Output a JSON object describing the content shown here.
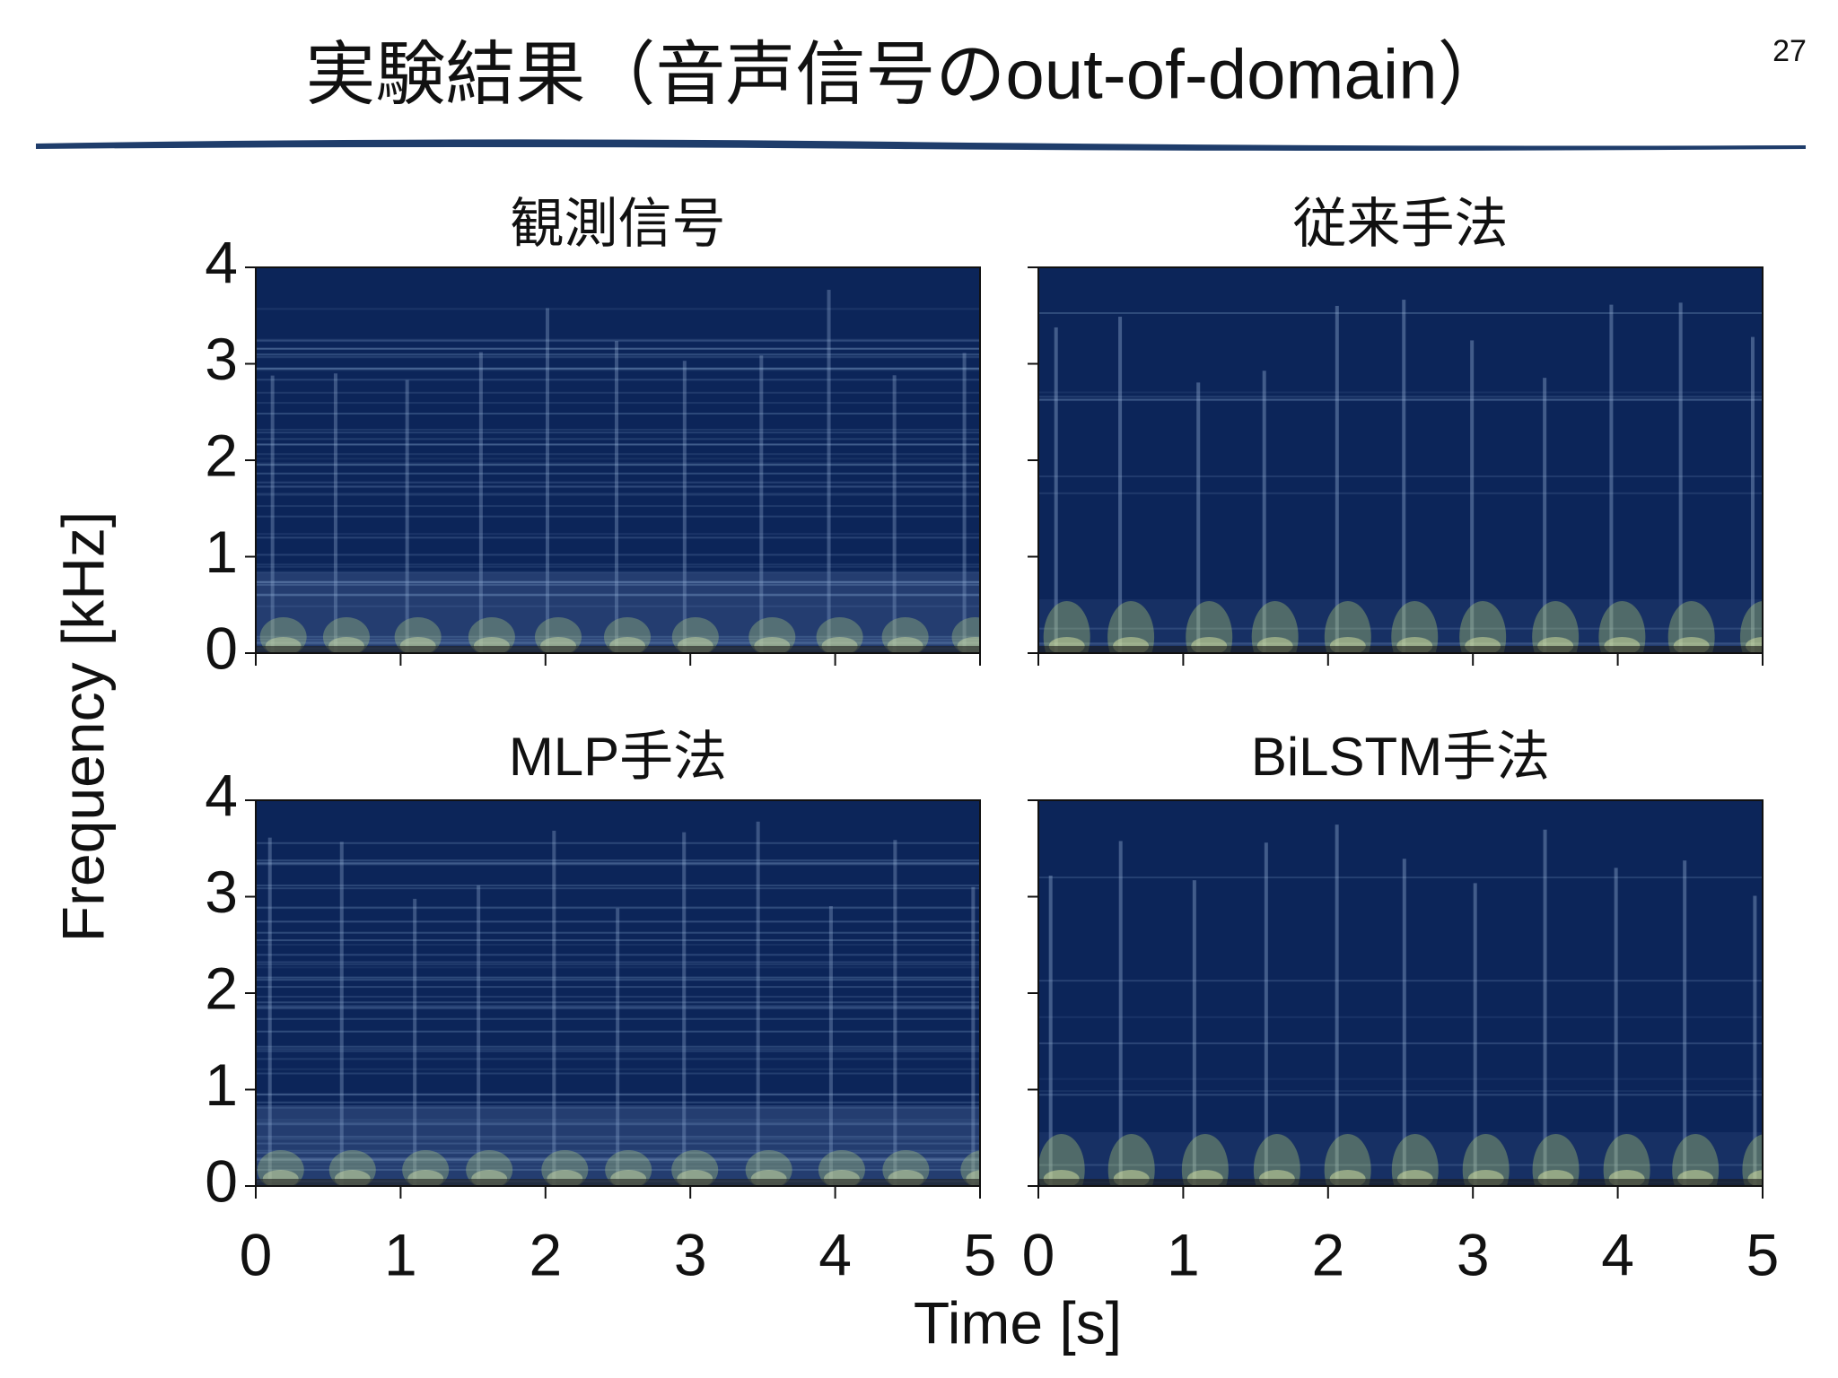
{
  "slide_title": "実験結果（音声信号のout-of-domain）",
  "page_number": "27",
  "xlabel": "Time [s]",
  "ylabel": "Frequency [kHz]",
  "chart_data": [
    {
      "type": "spectrogram",
      "title": "観測信号",
      "xlim": [
        0,
        5
      ],
      "ylim": [
        0,
        4
      ],
      "xticks": [
        0,
        1,
        2,
        3,
        4,
        5
      ],
      "yticks": [
        0,
        1,
        2,
        3,
        4
      ],
      "tick_labels": {
        "x": false,
        "y": true
      },
      "onsets": "dense"
    },
    {
      "type": "spectrogram",
      "title": "従来手法",
      "xlim": [
        0,
        5
      ],
      "ylim": [
        0,
        4
      ],
      "xticks": [
        0,
        1,
        2,
        3,
        4,
        5
      ],
      "yticks": [
        0,
        1,
        2,
        3,
        4
      ],
      "tick_labels": {
        "x": false,
        "y": false
      },
      "onsets": "sparse"
    },
    {
      "type": "spectrogram",
      "title": "MLP手法",
      "xlim": [
        0,
        5
      ],
      "ylim": [
        0,
        4
      ],
      "xticks": [
        0,
        1,
        2,
        3,
        4,
        5
      ],
      "yticks": [
        0,
        1,
        2,
        3,
        4
      ],
      "tick_labels": {
        "x": true,
        "y": true
      },
      "onsets": "dense"
    },
    {
      "type": "spectrogram",
      "title": "BiLSTM手法",
      "xlim": [
        0,
        5
      ],
      "ylim": [
        0,
        4
      ],
      "xticks": [
        0,
        1,
        2,
        3,
        4,
        5
      ],
      "yticks": [
        0,
        1,
        2,
        3,
        4
      ],
      "tick_labels": {
        "x": true,
        "y": false
      },
      "onsets": "sparse"
    }
  ]
}
